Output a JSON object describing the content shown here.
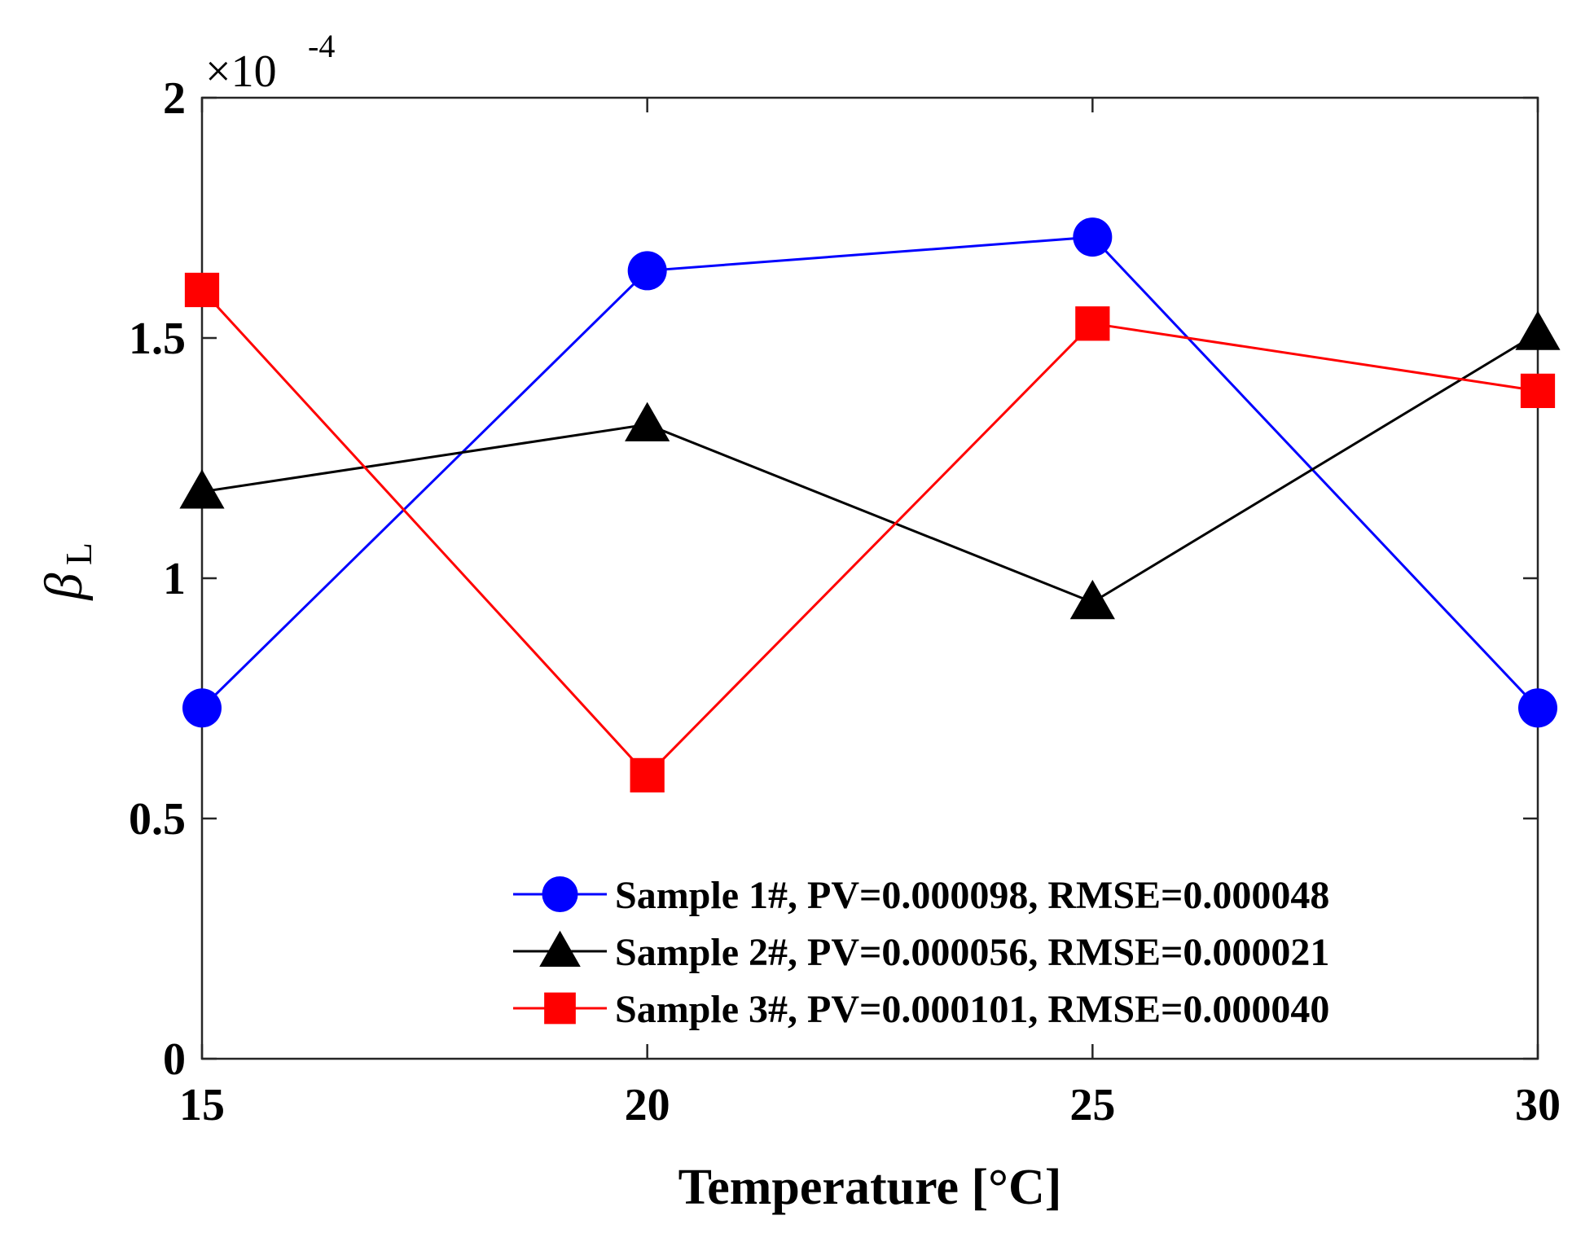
{
  "chart_data": {
    "type": "line",
    "title": "",
    "xlabel": "Temperature [°C]",
    "ylabel_symbol": "β",
    "ylabel_subscript": "L",
    "y_multiplier": "×10",
    "y_multiplier_exponent": "-4",
    "x": [
      15,
      20,
      25,
      30
    ],
    "xlim": [
      15,
      30
    ],
    "ylim": [
      0,
      2
    ],
    "xticks": [
      15,
      20,
      25,
      30
    ],
    "xtick_labels": [
      "15",
      "20",
      "25",
      "30"
    ],
    "yticks": [
      0,
      0.5,
      1,
      1.5,
      2
    ],
    "ytick_labels": [
      "0",
      "0.5",
      "1",
      "1.5",
      "2"
    ],
    "grid": false,
    "legend_position": "bottom-right",
    "series": [
      {
        "name": "Sample 1#, PV=0.000098, RMSE=0.000048",
        "color": "#0000ff",
        "marker": "circle",
        "values": [
          0.73,
          1.64,
          1.71,
          0.73
        ]
      },
      {
        "name": "Sample 2#, PV=0.000056, RMSE=0.000021",
        "color": "#000000",
        "marker": "triangle",
        "values": [
          1.18,
          1.32,
          0.95,
          1.51
        ]
      },
      {
        "name": "Sample 3#, PV=0.000101, RMSE=0.000040",
        "color": "#ff0000",
        "marker": "square",
        "values": [
          1.6,
          0.59,
          1.53,
          1.39
        ]
      }
    ]
  }
}
